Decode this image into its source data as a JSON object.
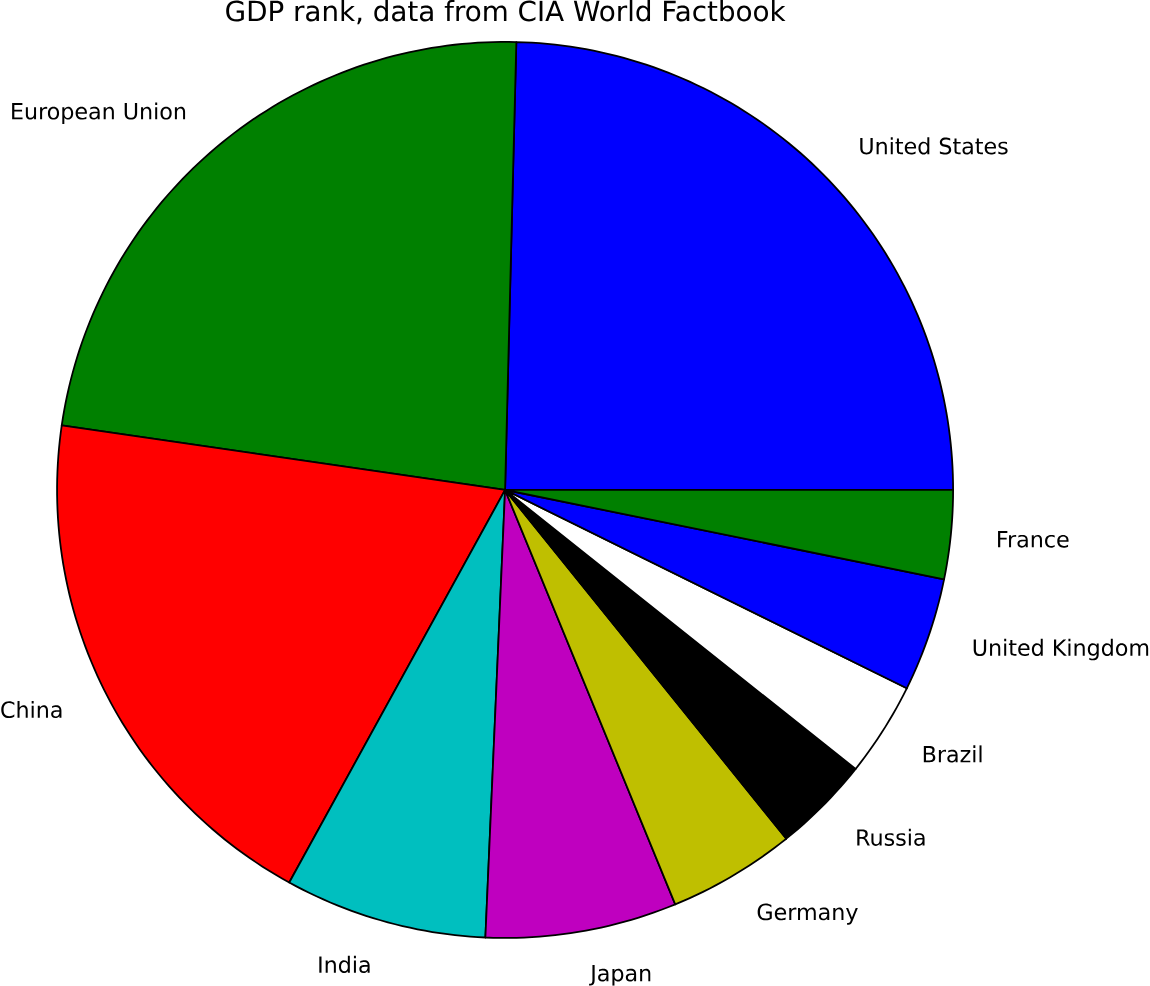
{
  "chart_data": {
    "type": "pie",
    "title": "GDP rank, data from CIA World Factbook",
    "categories": [
      "United States",
      "European Union",
      "China",
      "India",
      "Japan",
      "Germany",
      "Russia",
      "Brazil",
      "United Kingdom",
      "France"
    ],
    "values": [
      24.6,
      23.1,
      19.3,
      7.3,
      6.9,
      4.6,
      3.5,
      3.4,
      4.1,
      3.2
    ],
    "colors": [
      "#0000ff",
      "#008000",
      "#ff0000",
      "#00bfbf",
      "#bf00bf",
      "#bfbf00",
      "#000000",
      "#ffffff",
      "#0000ff",
      "#008000"
    ]
  }
}
